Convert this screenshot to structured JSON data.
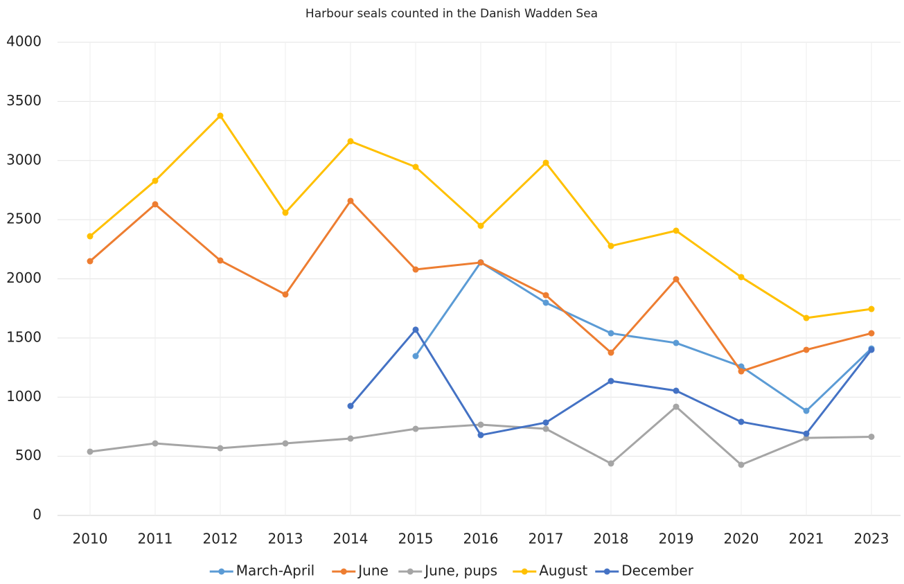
{
  "chart_data": {
    "type": "line",
    "title": "Harbour seals counted in the Danish Wadden Sea",
    "categories": [
      "2010",
      "2011",
      "2012",
      "2013",
      "2014",
      "2015",
      "2016",
      "2017",
      "2018",
      "2019",
      "2020",
      "2021",
      "2023"
    ],
    "series": [
      {
        "name": "March-April",
        "color": "#5b9bd5",
        "values": [
          null,
          null,
          null,
          null,
          null,
          1347,
          2140,
          1798,
          1540,
          1458,
          1259,
          884,
          1411
        ]
      },
      {
        "name": "June",
        "color": "#ed7d31",
        "values": [
          2149,
          2630,
          2155,
          1868,
          2659,
          2079,
          2138,
          1862,
          1376,
          1997,
          1218,
          1400,
          1540
        ]
      },
      {
        "name": "June, pups",
        "color": "#a5a5a5",
        "values": [
          539,
          609,
          568,
          609,
          650,
          732,
          767,
          732,
          439,
          919,
          428,
          655,
          665
        ]
      },
      {
        "name": "August",
        "color": "#ffc000",
        "values": [
          2360,
          2829,
          3379,
          2559,
          3163,
          2946,
          2448,
          2981,
          2278,
          2407,
          2015,
          1669,
          1745
        ]
      },
      {
        "name": "December",
        "color": "#4472c4",
        "values": [
          null,
          null,
          null,
          null,
          925,
          1570,
          679,
          785,
          1136,
          1054,
          791,
          691,
          1400
        ]
      }
    ],
    "ylim": [
      0,
      4000
    ],
    "yticks": [
      0,
      500,
      1000,
      1500,
      2000,
      2500,
      3000,
      3500,
      4000
    ],
    "grid": true,
    "legend": "bottom"
  }
}
